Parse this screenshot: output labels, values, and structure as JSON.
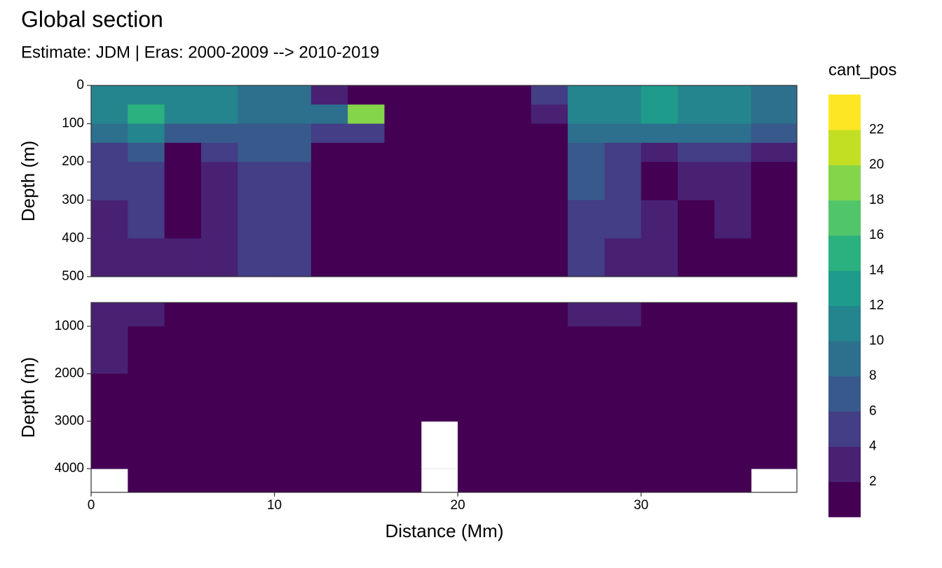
{
  "chart_data": {
    "type": "contour",
    "title": "Global section",
    "subtitle": "Estimate: JDM  | Eras: 2000-2009 --> 2010-2019",
    "xlabel": "Distance (Mm)",
    "x_bins": [
      0,
      2,
      4,
      6,
      8,
      10,
      12,
      14,
      16,
      18,
      20,
      22,
      24,
      26,
      28,
      30,
      32,
      34,
      36,
      38.5
    ],
    "xlim": [
      0,
      38.5
    ],
    "xticks": [
      0,
      10,
      20,
      30
    ],
    "legend_title": "cant_pos",
    "levels": [
      0,
      2,
      4,
      6,
      8,
      10,
      12,
      14,
      16,
      18,
      20,
      22,
      24
    ],
    "level_colors": [
      "#440154",
      "#482173",
      "#433e85",
      "#38598c",
      "#2d708e",
      "#25858e",
      "#1e9b8a",
      "#2bb07f",
      "#51c56a",
      "#85d54a",
      "#c2df23",
      "#fde725"
    ],
    "legend_ticks": [
      2,
      4,
      6,
      8,
      10,
      12,
      14,
      16,
      18,
      20,
      22
    ],
    "grid": true,
    "panels": [
      {
        "ylabel": "Depth (m)",
        "depth_bins": [
          0,
          50,
          100,
          150,
          200,
          300,
          400,
          500
        ],
        "ylim": [
          0,
          500
        ],
        "yticks": [
          0,
          100,
          200,
          300,
          400,
          500
        ],
        "values": [
          [
            10,
            11,
            11,
            10,
            9,
            9,
            3,
            1,
            1,
            1,
            1,
            1,
            5,
            11,
            11,
            12,
            11,
            11,
            8
          ],
          [
            11,
            14,
            11,
            10,
            9,
            9,
            8,
            18,
            1,
            1,
            1,
            1,
            3,
            11,
            11,
            12,
            11,
            11,
            9
          ],
          [
            8,
            10,
            6,
            7,
            6,
            7,
            5,
            5,
            1,
            1,
            1,
            1,
            1,
            9,
            8,
            8,
            8,
            8,
            6
          ],
          [
            5,
            6,
            1,
            4,
            6,
            7,
            1,
            1,
            1,
            1,
            1,
            1,
            1,
            7,
            5,
            3,
            5,
            4,
            3
          ],
          [
            4,
            5,
            1,
            3,
            5,
            5,
            1,
            1,
            1,
            1,
            1,
            1,
            1,
            6,
            4,
            1,
            3,
            3,
            1
          ],
          [
            3,
            4,
            1,
            3,
            5,
            5,
            1,
            1,
            1,
            1,
            1,
            1,
            1,
            5,
            4,
            3,
            1,
            3,
            1
          ],
          [
            3,
            3,
            3,
            3,
            4,
            4,
            1,
            1,
            1,
            1,
            1,
            1,
            1,
            4,
            3,
            3,
            1,
            1,
            1
          ]
        ]
      },
      {
        "ylabel": "Depth (m)",
        "depth_bins": [
          500,
          1000,
          2000,
          3000,
          4000,
          4500
        ],
        "ylim": [
          500,
          4500
        ],
        "yticks": [
          1000,
          2000,
          3000,
          4000
        ],
        "values": [
          [
            3,
            2,
            1,
            1,
            1,
            1,
            1,
            1,
            1,
            1,
            1,
            1,
            1,
            2,
            2,
            1,
            1,
            1,
            1
          ],
          [
            3,
            1,
            1,
            1,
            1,
            1,
            1,
            1,
            1,
            1,
            1,
            1,
            1,
            1,
            1,
            1,
            1,
            1,
            1
          ],
          [
            1,
            1,
            1,
            1,
            1,
            1,
            1,
            1,
            1,
            1,
            1,
            1,
            1,
            1,
            1,
            1,
            1,
            1,
            1
          ],
          [
            1,
            1,
            1,
            1,
            1,
            1,
            1,
            1,
            1,
            null,
            1,
            1,
            1,
            1,
            1,
            1,
            1,
            1,
            1
          ],
          [
            null,
            1,
            1,
            1,
            1,
            1,
            1,
            1,
            1,
            null,
            1,
            1,
            1,
            1,
            1,
            1,
            1,
            1,
            null
          ]
        ]
      }
    ]
  }
}
